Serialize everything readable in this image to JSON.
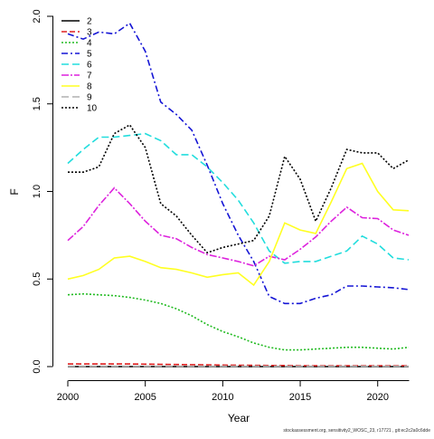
{
  "chart_data": {
    "type": "line",
    "title": "",
    "xlabel": "Year",
    "ylabel": "F",
    "xlim": [
      2000,
      2022
    ],
    "ylim": [
      0,
      2.0
    ],
    "x_ticks": [
      "2000",
      "2005",
      "2010",
      "2015",
      "2020"
    ],
    "y_ticks": [
      "0.0",
      "0.5",
      "1.0",
      "1.5",
      "2.0"
    ],
    "grid": false,
    "legend_position": "top-left",
    "x": [
      2000,
      2001,
      2002,
      2003,
      2004,
      2005,
      2006,
      2007,
      2008,
      2009,
      2010,
      2011,
      2012,
      2013,
      2014,
      2015,
      2016,
      2017,
      2018,
      2019,
      2020,
      2021,
      2022
    ],
    "series": [
      {
        "name": "2",
        "color": "#000000",
        "dash": "",
        "values": [
          0.0,
          0.0,
          0.0,
          0.0,
          0.0,
          0.0,
          0.0,
          0.0,
          0.0,
          0.0,
          0.0,
          0.0,
          0.0,
          0.0,
          0.0,
          0.0,
          0.0,
          0.0,
          0.0,
          0.0,
          0.0,
          0.0,
          0.0
        ]
      },
      {
        "name": "3",
        "color": "#df2020",
        "dash": "6,3",
        "values": [
          0.015,
          0.015,
          0.015,
          0.015,
          0.015,
          0.014,
          0.013,
          0.012,
          0.011,
          0.01,
          0.009,
          0.008,
          0.007,
          0.006,
          0.006,
          0.005,
          0.005,
          0.005,
          0.005,
          0.005,
          0.005,
          0.005,
          0.005
        ]
      },
      {
        "name": "4",
        "color": "#22bb22",
        "dash": "2,2",
        "values": [
          0.41,
          0.415,
          0.41,
          0.405,
          0.395,
          0.38,
          0.36,
          0.33,
          0.29,
          0.24,
          0.2,
          0.17,
          0.135,
          0.11,
          0.095,
          0.095,
          0.1,
          0.105,
          0.11,
          0.11,
          0.105,
          0.1,
          0.11
        ]
      },
      {
        "name": "5",
        "color": "#1515d5",
        "dash": "7,3,2,3",
        "values": [
          1.9,
          1.87,
          1.91,
          1.9,
          1.96,
          1.8,
          1.51,
          1.44,
          1.35,
          1.15,
          0.93,
          0.75,
          0.6,
          0.4,
          0.36,
          0.36,
          0.39,
          0.41,
          0.46,
          0.46,
          0.455,
          0.45,
          0.44
        ]
      },
      {
        "name": "6",
        "color": "#22dddd",
        "dash": "8,4",
        "values": [
          1.16,
          1.24,
          1.31,
          1.31,
          1.32,
          1.33,
          1.29,
          1.21,
          1.21,
          1.14,
          1.05,
          0.95,
          0.82,
          0.66,
          0.59,
          0.6,
          0.6,
          0.63,
          0.66,
          0.745,
          0.7,
          0.62,
          0.61
        ]
      },
      {
        "name": "7",
        "color": "#dd22dd",
        "dash": "8,2,2,2",
        "values": [
          0.72,
          0.8,
          0.92,
          1.02,
          0.93,
          0.83,
          0.75,
          0.73,
          0.68,
          0.64,
          0.62,
          0.6,
          0.575,
          0.63,
          0.61,
          0.67,
          0.74,
          0.83,
          0.91,
          0.85,
          0.845,
          0.78,
          0.75
        ]
      },
      {
        "name": "8",
        "color": "#ffff22",
        "dash": "",
        "values": [
          0.5,
          0.52,
          0.555,
          0.62,
          0.63,
          0.6,
          0.565,
          0.555,
          0.535,
          0.51,
          0.525,
          0.535,
          0.465,
          0.6,
          0.82,
          0.78,
          0.76,
          0.94,
          1.13,
          1.16,
          1.0,
          0.895,
          0.89
        ]
      },
      {
        "name": "9",
        "color": "#b0b0b0",
        "dash": "8,4",
        "values": [
          0.002,
          0.002,
          0.002,
          0.002,
          0.002,
          0.002,
          0.002,
          0.002,
          0.002,
          0.002,
          0.002,
          0.002,
          0.002,
          0.002,
          0.002,
          0.002,
          0.002,
          0.002,
          0.002,
          0.002,
          0.002,
          0.002,
          0.002
        ]
      },
      {
        "name": "10",
        "color": "#000000",
        "dash": "2,2",
        "values": [
          1.11,
          1.11,
          1.14,
          1.33,
          1.38,
          1.25,
          0.93,
          0.86,
          0.75,
          0.65,
          0.68,
          0.7,
          0.72,
          0.86,
          1.2,
          1.07,
          0.83,
          1.02,
          1.24,
          1.22,
          1.22,
          1.13,
          1.18
        ]
      }
    ]
  },
  "footer": {
    "credit": "stockassessment.org, sensitivity2_WOSC_23, r17721 , git:ec2c2a0c6dde"
  }
}
